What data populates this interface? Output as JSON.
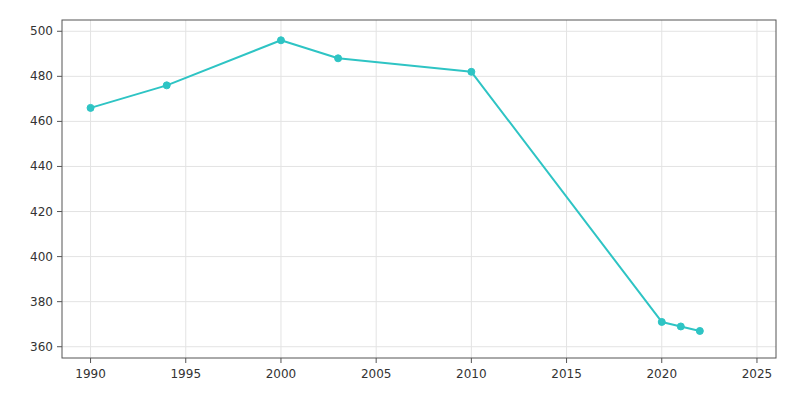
{
  "chart_data": {
    "type": "line",
    "x": [
      1990,
      1994,
      2000,
      2003,
      2010,
      2020,
      2021,
      2022
    ],
    "values": [
      466,
      476,
      496,
      488,
      482,
      371,
      369,
      367
    ],
    "color": "#2ec4c4",
    "marker": "circle",
    "xlim": [
      1988.5,
      2026
    ],
    "ylim": [
      355,
      505
    ],
    "xticks": [
      1990,
      1995,
      2000,
      2005,
      2010,
      2015,
      2020,
      2025
    ],
    "yticks": [
      360,
      380,
      400,
      420,
      440,
      460,
      480,
      500
    ],
    "grid": true
  }
}
